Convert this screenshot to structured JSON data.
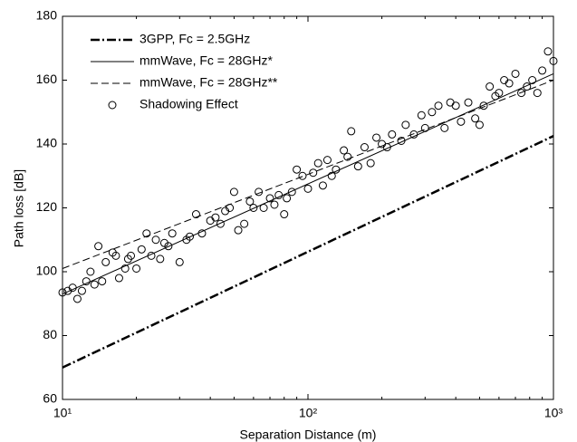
{
  "chart_data": {
    "type": "line",
    "xlabel": "Separation Distance (m)",
    "ylabel": "Path loss [dB]",
    "xscale": "log",
    "xlim": [
      10,
      1000
    ],
    "ylim": [
      60,
      180
    ],
    "xticks": [
      {
        "value": 10,
        "label": "10¹"
      },
      {
        "value": 100,
        "label": "10²"
      },
      {
        "value": 1000,
        "label": "10³"
      }
    ],
    "xminorticks": [
      20,
      30,
      40,
      50,
      60,
      70,
      80,
      90,
      200,
      300,
      400,
      500,
      600,
      700,
      800,
      900
    ],
    "yticks": [
      60,
      80,
      100,
      120,
      140,
      160,
      180
    ],
    "legend": "upper left",
    "series": [
      {
        "name": "3GPP, Fc = 2.5GHz",
        "color": "#000000",
        "style": "dashdot",
        "x": [
          10,
          1000
        ],
        "values": [
          70,
          142.5
        ]
      },
      {
        "name": "mmWave, Fc = 28GHz*",
        "color": "#000000",
        "style": "solid",
        "x": [
          10,
          1000
        ],
        "values": [
          93,
          162
        ]
      },
      {
        "name": "mmWave, Fc = 28GHz**",
        "color": "#000000",
        "style": "dashed",
        "x": [
          10,
          1000
        ],
        "values": [
          101,
          160
        ]
      },
      {
        "name": "Shadowing Effect",
        "color": "#000000",
        "style": "marker",
        "x": [
          10,
          10.5,
          11,
          11.5,
          12,
          12.5,
          13,
          13.5,
          14,
          14.5,
          15,
          16,
          16.5,
          17,
          18,
          18.5,
          19,
          20,
          21,
          22,
          23,
          24,
          25,
          26,
          27,
          28,
          30,
          32,
          33,
          35,
          37,
          40,
          42,
          44,
          46,
          48,
          50,
          52,
          55,
          58,
          60,
          63,
          66,
          70,
          73,
          76,
          80,
          82,
          86,
          90,
          95,
          100,
          105,
          110,
          115,
          120,
          125,
          130,
          140,
          145,
          150,
          160,
          170,
          180,
          190,
          200,
          210,
          220,
          240,
          250,
          270,
          290,
          300,
          320,
          340,
          360,
          380,
          400,
          420,
          450,
          480,
          500,
          520,
          550,
          580,
          600,
          630,
          660,
          700,
          740,
          780,
          820,
          860,
          900,
          950,
          1000
        ],
        "values": [
          93.5,
          94,
          95,
          91.5,
          94,
          97,
          100,
          96,
          108,
          97,
          103,
          106,
          105,
          98,
          101,
          104,
          105,
          101,
          107,
          112,
          105,
          110,
          104,
          109,
          108,
          112,
          103,
          110,
          111,
          118,
          112,
          116,
          117,
          115,
          119,
          120,
          125,
          113,
          115,
          122,
          120,
          125,
          120,
          123,
          121,
          124,
          118,
          123,
          125,
          132,
          130,
          126,
          131,
          134,
          127,
          135,
          130,
          132,
          138,
          136,
          144,
          133,
          139,
          134,
          142,
          140,
          139,
          143,
          141,
          146,
          143,
          149,
          145,
          150,
          152,
          145,
          153,
          152,
          147,
          153,
          148,
          146,
          152,
          158,
          155,
          156,
          160,
          159,
          162,
          156,
          158,
          160,
          156,
          163,
          169,
          166
        ]
      }
    ]
  }
}
